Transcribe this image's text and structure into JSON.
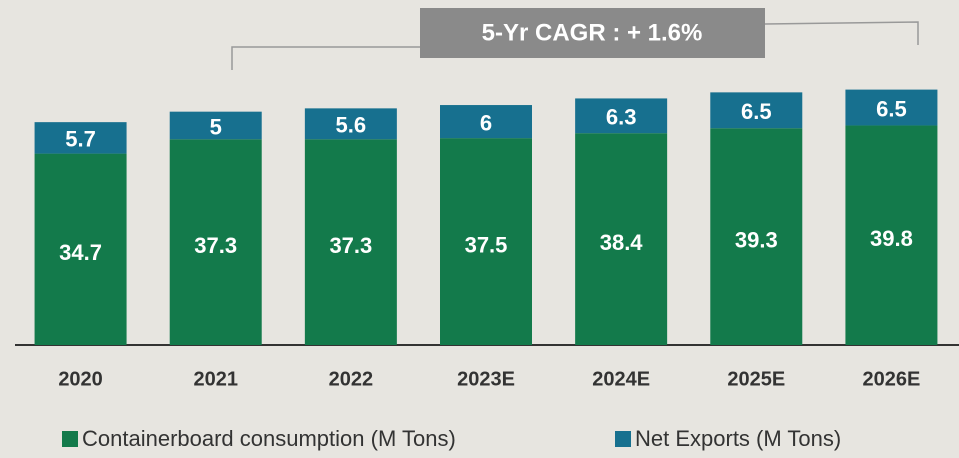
{
  "chart_data": {
    "type": "stacked_bar",
    "annotation": "5-Yr CAGR : + 1.6%",
    "categories": [
      "2020",
      "2021",
      "2022",
      "2023E",
      "2024E",
      "2025E",
      "2026E"
    ],
    "series": [
      {
        "name": "Containerboard consumption (M Tons)",
        "color": "#137a4b",
        "values": [
          34.7,
          37.3,
          37.3,
          37.5,
          38.4,
          39.3,
          39.8
        ]
      },
      {
        "name": "Net Exports (M Tons)",
        "color": "#17708f",
        "values": [
          5.7,
          5.0,
          5.6,
          6.0,
          6.3,
          6.5,
          6.5
        ]
      }
    ],
    "ylim": [
      0,
      62
    ],
    "legend": "bottom"
  }
}
